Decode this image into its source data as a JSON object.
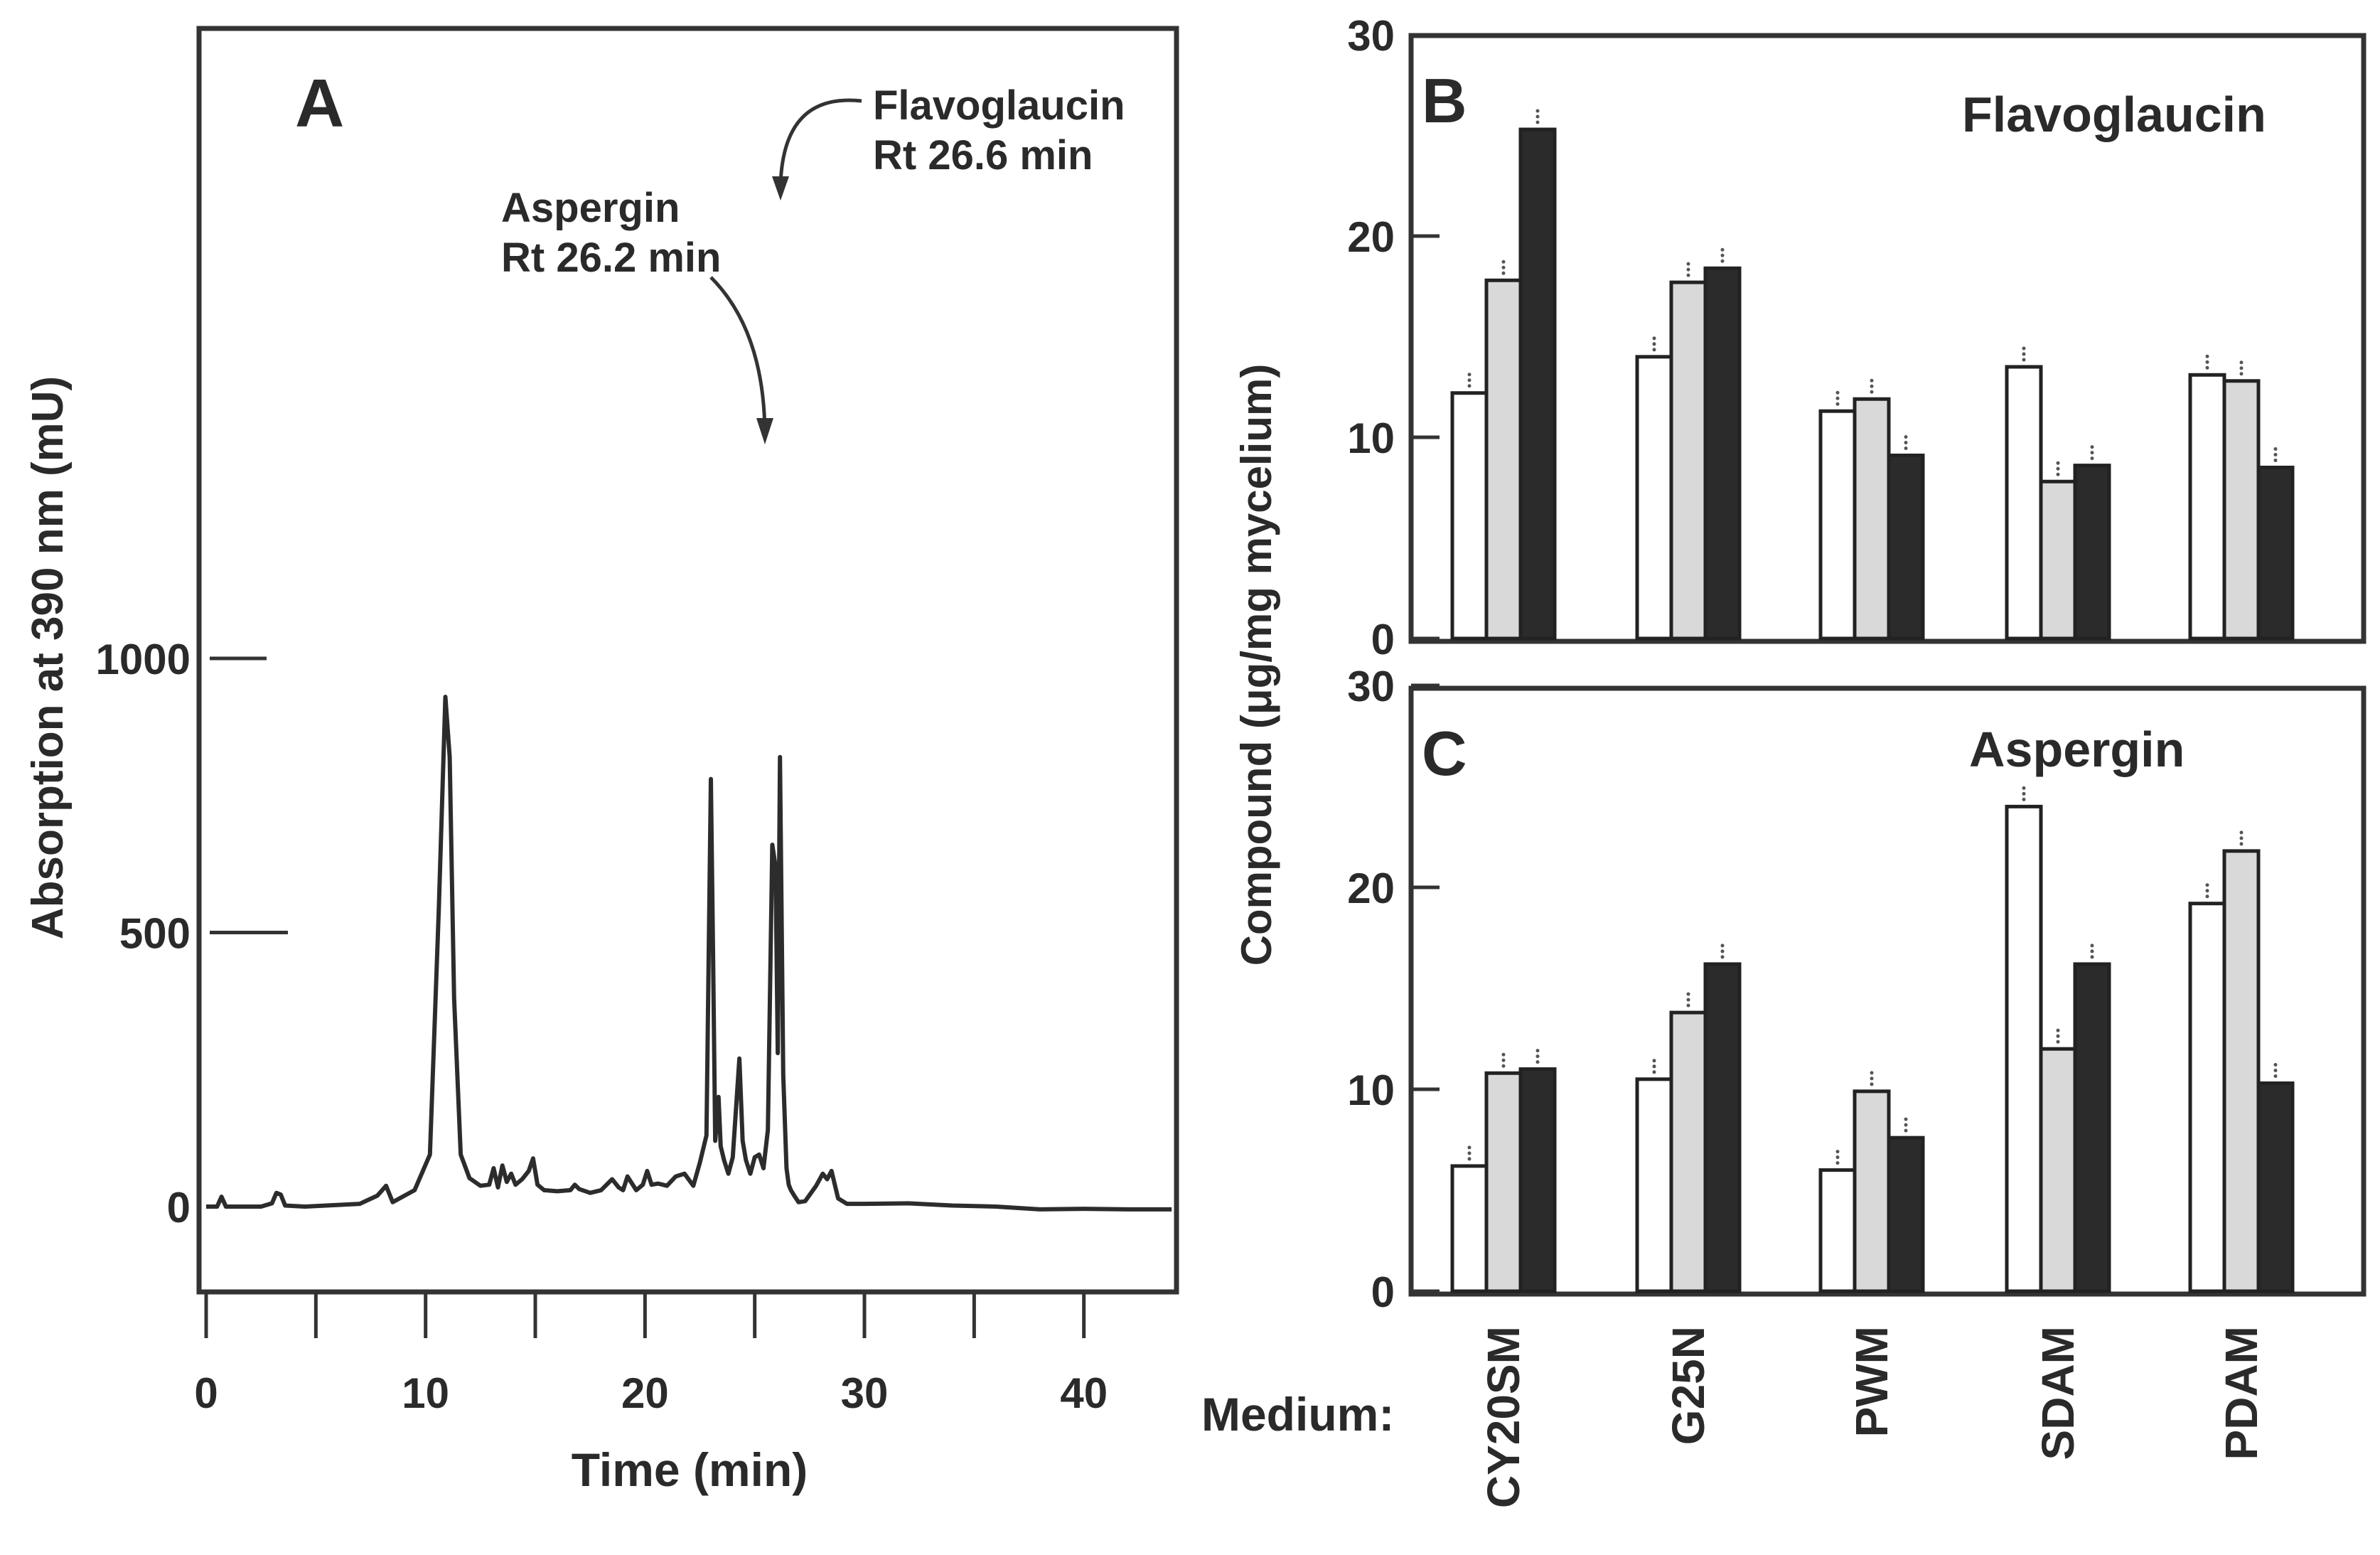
{
  "chart_data": [
    {
      "panel": "A",
      "type": "line",
      "xlabel": "Time (min)",
      "ylabel": "Absorption at 390 nm (mU)",
      "xlim": [
        0,
        44
      ],
      "ylim": [
        -150,
        1070
      ],
      "xticks": [
        0,
        10,
        20,
        30,
        40
      ],
      "xticks_minor": [
        5,
        15,
        25,
        35
      ],
      "yticks": [
        0,
        500,
        1000
      ],
      "annotations": [
        {
          "lines": [
            "Aspergin",
            "Rt 26.2 min"
          ],
          "x": 26.2
        },
        {
          "lines": [
            "Flavoglaucin",
            "Rt 26.6 min"
          ],
          "x": 26.6
        }
      ],
      "series": [
        {
          "x": [
            0,
            0.5,
            0.7,
            0.9,
            1.2,
            2.5,
            3.0,
            3.2,
            3.4,
            3.6,
            4.5,
            7.0,
            7.8,
            8.2,
            8.5,
            9.5,
            10.2,
            10.6,
            10.9,
            11.1,
            11.3,
            11.6,
            12.0,
            12.5,
            12.9,
            13.1,
            13.3,
            13.5,
            13.7,
            13.9,
            14.1,
            14.4,
            14.7,
            14.9,
            15.1,
            15.4,
            16.0,
            16.6,
            16.8,
            17.0,
            17.5,
            18.0,
            18.5,
            18.8,
            19.0,
            19.2,
            19.6,
            19.9,
            20.1,
            20.3,
            20.6,
            21.0,
            21.4,
            21.8,
            22.2,
            22.5,
            22.8,
            23.0,
            23.1,
            23.2,
            23.35,
            23.45,
            23.6,
            23.8,
            24.0,
            24.3,
            24.45,
            24.6,
            24.8,
            25.0,
            25.2,
            25.4,
            25.6,
            25.8,
            25.95,
            26.05,
            26.15,
            26.3,
            26.45,
            26.55,
            26.65,
            26.8,
            27.0,
            27.3,
            27.8,
            28.1,
            28.3,
            28.5,
            28.8,
            29.2,
            30.0,
            32.0,
            34.0,
            36.0,
            38.0,
            40.0,
            42.0,
            44.0
          ],
          "y": [
            0,
            0,
            18,
            0,
            0,
            0,
            6,
            25,
            22,
            2,
            0,
            5,
            20,
            38,
            8,
            30,
            95,
            540,
            930,
            820,
            380,
            95,
            52,
            38,
            40,
            70,
            35,
            75,
            45,
            60,
            40,
            50,
            65,
            88,
            40,
            30,
            28,
            30,
            40,
            32,
            25,
            30,
            50,
            35,
            30,
            55,
            30,
            40,
            65,
            40,
            42,
            38,
            55,
            60,
            38,
            80,
            130,
            780,
            470,
            120,
            200,
            110,
            85,
            60,
            90,
            270,
            120,
            85,
            60,
            90,
            95,
            70,
            140,
            660,
            620,
            280,
            820,
            240,
            70,
            40,
            30,
            20,
            8,
            10,
            38,
            60,
            50,
            65,
            15,
            5,
            5,
            6,
            2,
            0,
            -5,
            -4,
            -5,
            -5
          ]
        }
      ]
    },
    {
      "panel": "B",
      "type": "bar",
      "title": "Flavoglaucin",
      "ylabel": "Compound (μg/mg mycelium)",
      "ylim": [
        0,
        30
      ],
      "yticks": [
        0,
        10,
        20,
        30
      ],
      "categories": [
        "CY20SM",
        "G25N",
        "PWM",
        "SDAM",
        "PDAM"
      ],
      "series_colors": [
        "#ffffff",
        "#d9d9d9",
        "#2b2b2b"
      ],
      "series": [
        {
          "values": [
            12.2,
            14.0,
            11.3,
            13.5,
            13.1
          ]
        },
        {
          "values": [
            17.8,
            17.7,
            11.9,
            7.8,
            12.8
          ]
        },
        {
          "values": [
            25.3,
            18.4,
            9.1,
            8.6,
            8.5
          ]
        }
      ]
    },
    {
      "panel": "C",
      "type": "bar",
      "title": "Aspergin",
      "ylim": [
        0,
        30
      ],
      "yticks": [
        0,
        10,
        20,
        30
      ],
      "xlabel": "Medium:",
      "categories": [
        "CY20SM",
        "G25N",
        "PWM",
        "SDAM",
        "PDAM"
      ],
      "series_colors": [
        "#ffffff",
        "#d9d9d9",
        "#2b2b2b"
      ],
      "series": [
        {
          "values": [
            6.2,
            10.5,
            6.0,
            24.0,
            19.2
          ]
        },
        {
          "values": [
            10.8,
            13.8,
            9.9,
            12.0,
            21.8
          ]
        },
        {
          "values": [
            11.0,
            16.2,
            7.6,
            16.2,
            10.3
          ]
        }
      ]
    }
  ]
}
